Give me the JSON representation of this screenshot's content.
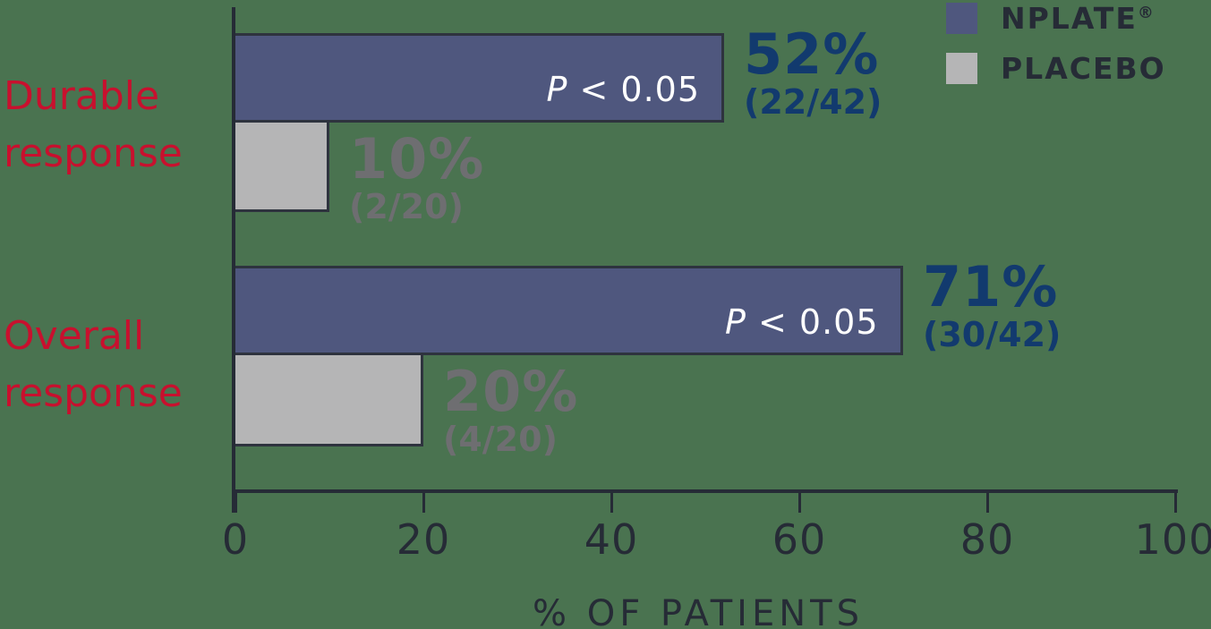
{
  "background_color": "#4a7350",
  "colors": {
    "nplate_bar": "#4f577e",
    "placebo_bar": "#b5b5b6",
    "category_label_red": "#c8102e",
    "nplate_value_text": "#123a6e",
    "placebo_value_text": "#6e6e71",
    "axis_dark": "#262b36",
    "p_value_text": "#ffffff"
  },
  "legend": {
    "items": [
      {
        "label": "NPLATE",
        "reg_mark": "®",
        "swatch_color": "#4f577e"
      },
      {
        "label": "PLACEBO",
        "reg_mark": "",
        "swatch_color": "#b5b5b6"
      }
    ]
  },
  "axis": {
    "tick_labels": [
      "0",
      "20",
      "40",
      "60",
      "80",
      "100"
    ],
    "title": "% OF PATIENTS"
  },
  "groups": [
    {
      "label": [
        "Durable",
        "response"
      ],
      "nplate": {
        "pct": "52%",
        "fraction": "(22/42)",
        "p_italic": "P",
        "p_rest": " < 0.05"
      },
      "placebo": {
        "pct": "10%",
        "fraction": "(2/20)"
      }
    },
    {
      "label": [
        "Overall",
        "response"
      ],
      "nplate": {
        "pct": "71%",
        "fraction": "(30/42)",
        "p_italic": "P",
        "p_rest": " < 0.05"
      },
      "placebo": {
        "pct": "20%",
        "fraction": "(4/20)"
      }
    }
  ],
  "chart_data": {
    "type": "bar",
    "orientation": "horizontal",
    "title": "",
    "xlabel": "% OF PATIENTS",
    "ylabel": "",
    "xlim": [
      0,
      100
    ],
    "xticks": [
      0,
      20,
      40,
      60,
      80,
      100
    ],
    "grid": false,
    "legend_position": "top-right",
    "categories": [
      "Durable response",
      "Overall response"
    ],
    "series": [
      {
        "name": "NPLATE®",
        "color": "#4f577e",
        "values": [
          52,
          71
        ],
        "fractions": [
          "22/42",
          "30/42"
        ],
        "annotations": [
          "P < 0.05",
          "P < 0.05"
        ]
      },
      {
        "name": "PLACEBO",
        "color": "#b5b5b6",
        "values": [
          10,
          20
        ],
        "fractions": [
          "2/20",
          "4/20"
        ],
        "annotations": [
          "",
          ""
        ]
      }
    ]
  }
}
